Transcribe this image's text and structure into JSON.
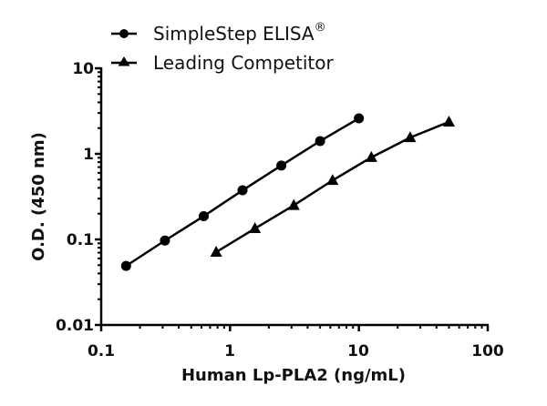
{
  "chart_data": {
    "type": "line",
    "title": "",
    "xlabel": "Human Lp-PLA2 (ng/mL)",
    "ylabel": "O.D. (450 nm)",
    "xscale": "log",
    "yscale": "log",
    "xlim": [
      0.1,
      100
    ],
    "ylim": [
      0.01,
      10
    ],
    "x_ticks": [
      "0.1",
      "1",
      "10",
      "100"
    ],
    "y_ticks": [
      "0.01",
      "0.1",
      "1",
      "10"
    ],
    "grid": false,
    "legend_position": "top-left (above plot)",
    "series": [
      {
        "name": "SimpleStep ELISA®",
        "marker": "circle",
        "color": "#000000",
        "x": [
          0.156,
          0.3125,
          0.625,
          1.25,
          2.5,
          5,
          10
        ],
        "y": [
          0.049,
          0.097,
          0.187,
          0.375,
          0.73,
          1.41,
          2.6
        ]
      },
      {
        "name": "Leading Competitor",
        "marker": "triangle",
        "color": "#000000",
        "x": [
          0.78,
          1.56,
          3.125,
          6.25,
          12.5,
          25,
          50
        ],
        "y": [
          0.071,
          0.134,
          0.25,
          0.49,
          0.91,
          1.55,
          2.36
        ]
      }
    ]
  },
  "legend": {
    "items": [
      {
        "label": "SimpleStep ELISA",
        "superscript": "®"
      },
      {
        "label": "Leading Competitor"
      }
    ]
  },
  "axes": {
    "x_title": "Human Lp-PLA2 (ng/mL)",
    "y_title": "O.D. (450 nm)",
    "x_tick_labels": [
      "0.1",
      "1",
      "10",
      "100"
    ],
    "y_tick_labels": [
      "10",
      "1",
      "0.1",
      "0.01"
    ]
  }
}
